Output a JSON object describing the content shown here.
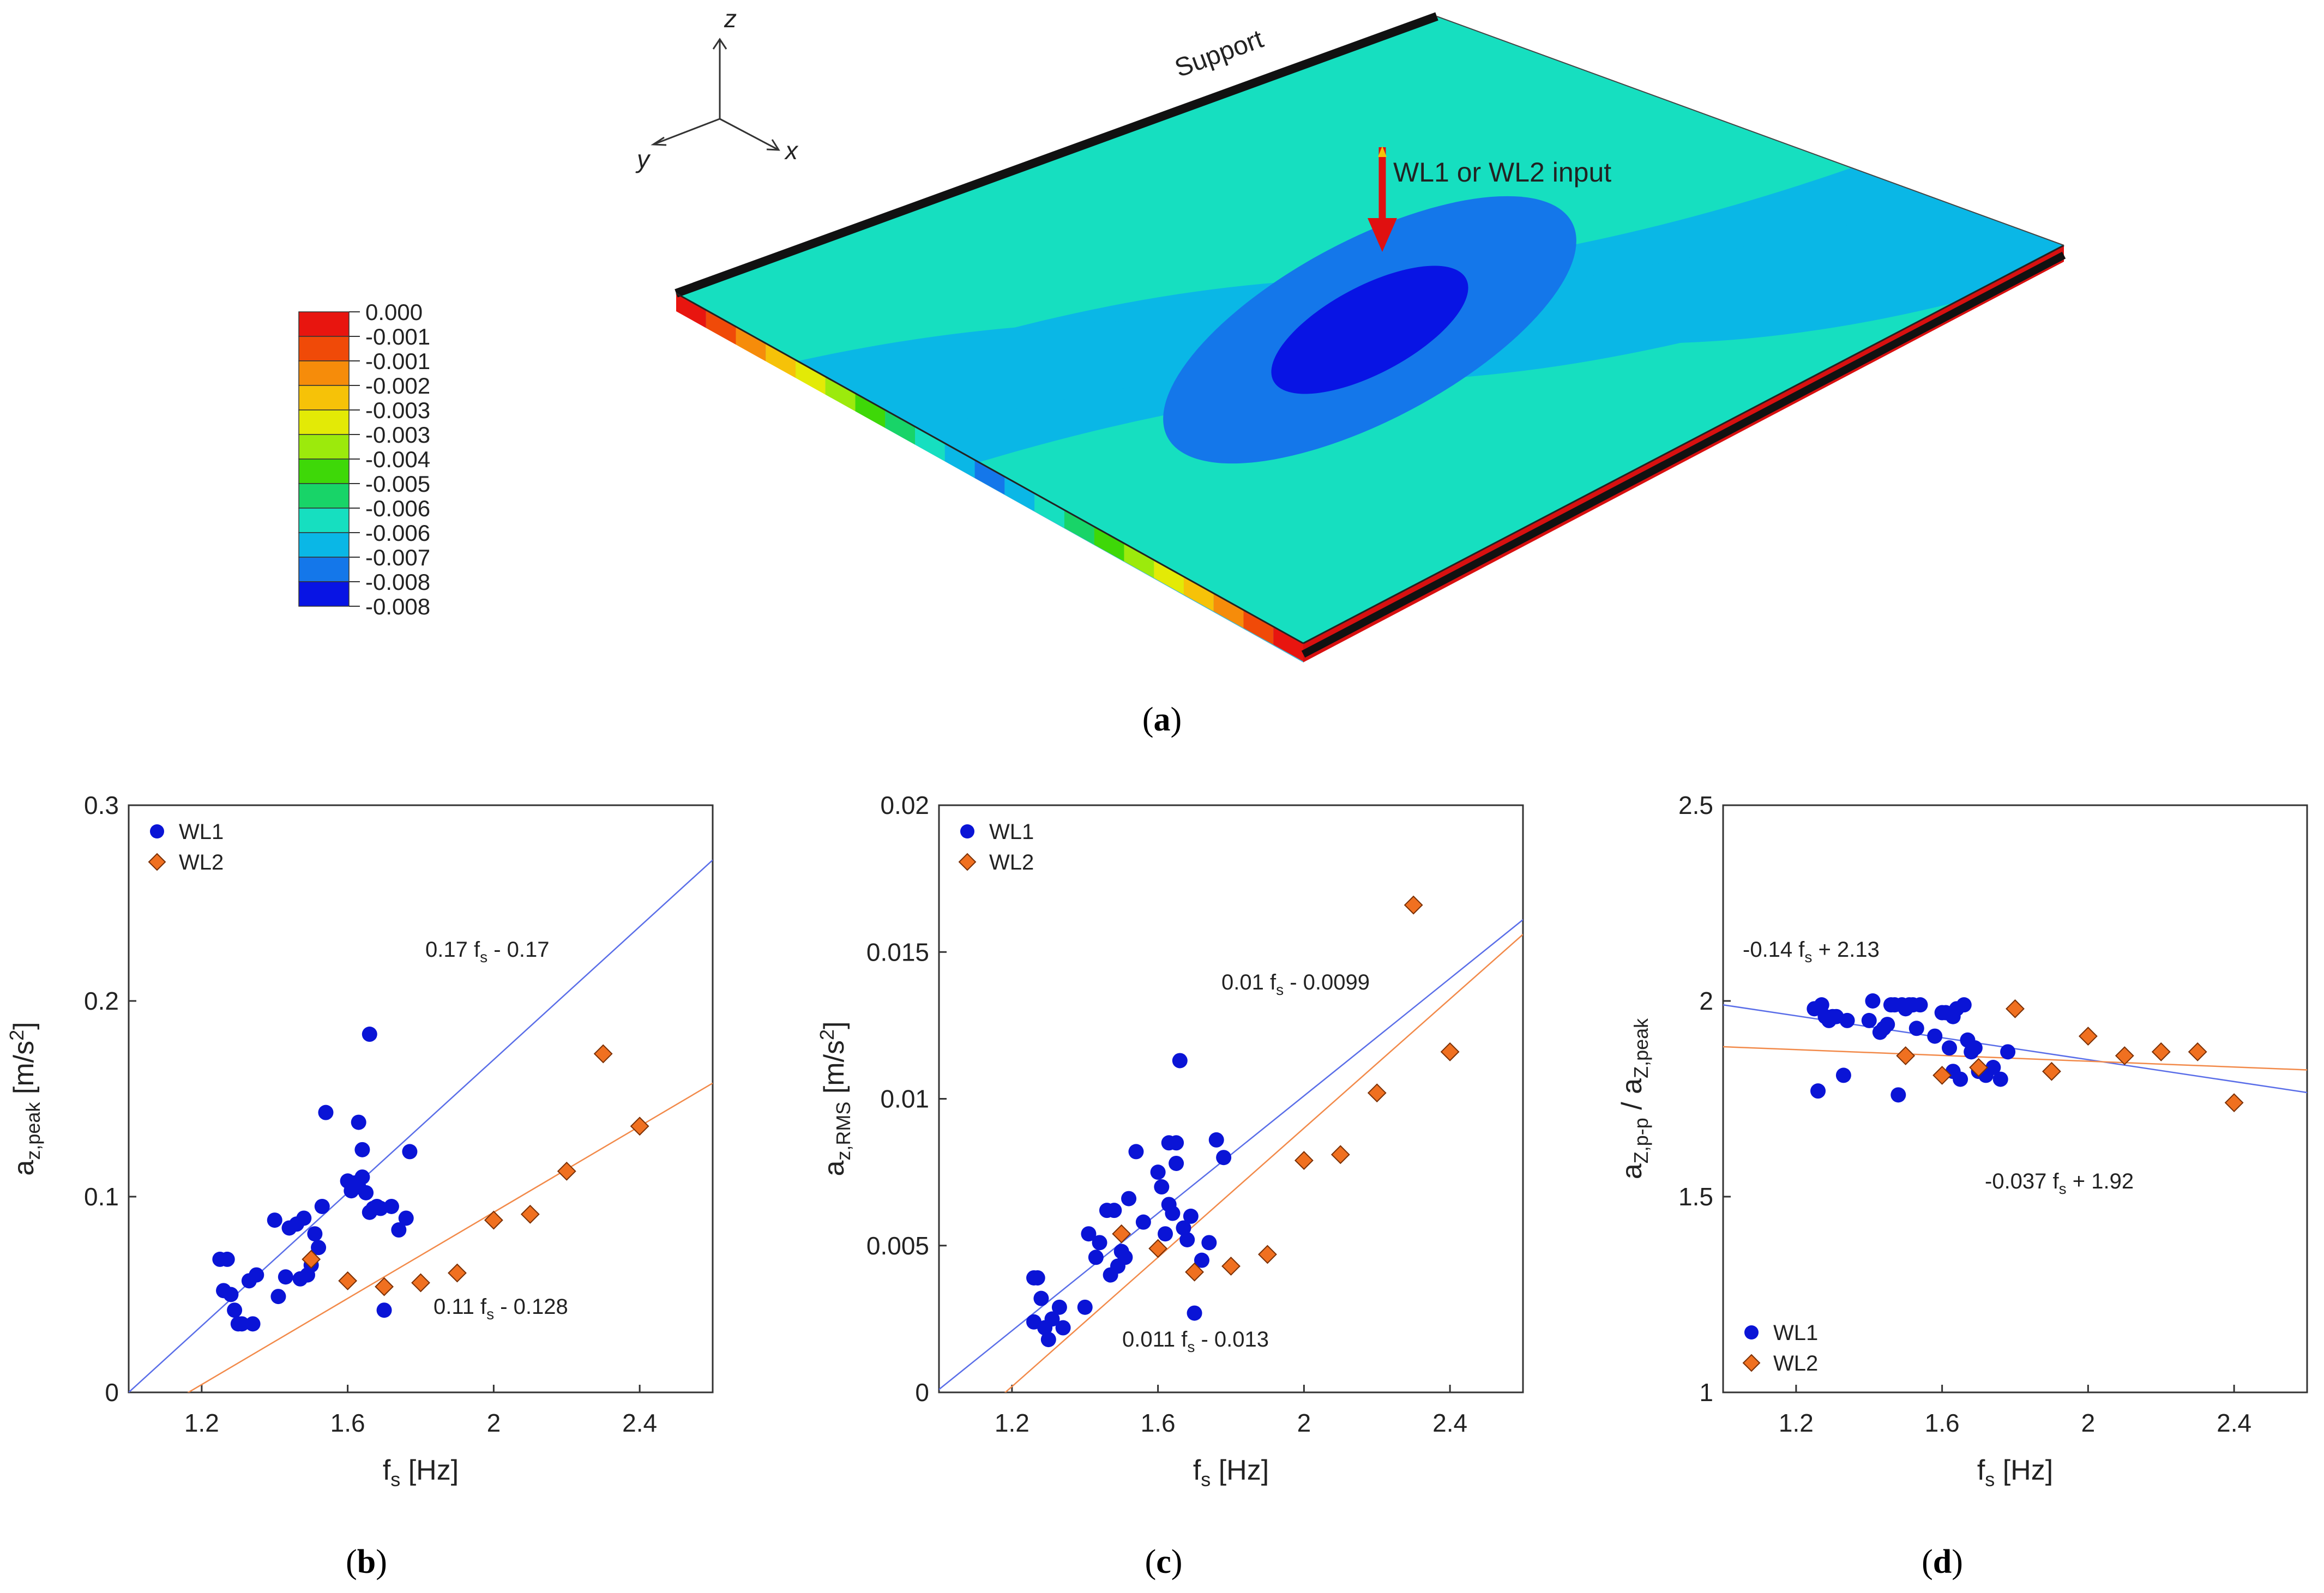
{
  "panel_a": {
    "caption_pre": "(",
    "caption_letter": "a",
    "caption_post": ")",
    "support_label": "Support",
    "input_label": "WL1 or WL2 input",
    "axes": {
      "z": "z",
      "y": "y",
      "x": "x"
    },
    "colorbar": {
      "labels": [
        "0.000",
        "-0.001",
        "-0.001",
        "-0.002",
        "-0.003",
        "-0.003",
        "-0.004",
        "-0.005",
        "-0.006",
        "-0.006",
        "-0.007",
        "-0.008",
        "-0.008"
      ],
      "colors": [
        "#e8150f",
        "#f04a08",
        "#f68c0a",
        "#f6c208",
        "#e3ea06",
        "#9cea0c",
        "#3ed808",
        "#18d468",
        "#16dfc0",
        "#0ab7e6",
        "#1477ea",
        "#0814e4"
      ]
    }
  },
  "chart_data": [
    {
      "id": "b",
      "type": "scatter",
      "caption_letter": "b",
      "xlabel_main": "f",
      "xlabel_sub": "s",
      "xlabel_rest": " [Hz]",
      "ylabel_main": "a",
      "ylabel_sub": "z,peak",
      "ylabel_rest": "  [m/s",
      "ylabel_sup": "2",
      "ylabel_end": "]",
      "xlim": [
        1.0,
        2.6
      ],
      "ylim": [
        0,
        0.3
      ],
      "xticks": [
        1.2,
        1.6,
        2.0,
        2.4
      ],
      "xtick_labels": [
        "1.2",
        "1.6",
        "2",
        "2.4"
      ],
      "yticks": [
        0,
        0.1,
        0.2,
        0.3
      ],
      "ytick_labels": [
        "0",
        "0.1",
        "0.2",
        "0.3"
      ],
      "legend": [
        "WL1",
        "WL2"
      ],
      "legend_position": "top-left",
      "series": [
        {
          "name": "WL1",
          "marker": "circle",
          "color": "#0a14d6",
          "x": [
            1.25,
            1.27,
            1.26,
            1.28,
            1.29,
            1.3,
            1.31,
            1.33,
            1.34,
            1.35,
            1.4,
            1.41,
            1.43,
            1.44,
            1.46,
            1.47,
            1.48,
            1.49,
            1.5,
            1.51,
            1.52,
            1.53,
            1.54,
            1.6,
            1.61,
            1.62,
            1.63,
            1.63,
            1.64,
            1.64,
            1.65,
            1.66,
            1.66,
            1.67,
            1.68,
            1.69,
            1.7,
            1.72,
            1.74,
            1.76,
            1.77
          ],
          "y": [
            0.068,
            0.068,
            0.052,
            0.05,
            0.042,
            0.035,
            0.035,
            0.057,
            0.035,
            0.06,
            0.088,
            0.049,
            0.059,
            0.084,
            0.086,
            0.058,
            0.089,
            0.06,
            0.065,
            0.081,
            0.074,
            0.095,
            0.143,
            0.108,
            0.103,
            0.107,
            0.105,
            0.138,
            0.11,
            0.124,
            0.102,
            0.183,
            0.092,
            0.094,
            0.095,
            0.094,
            0.042,
            0.095,
            0.083,
            0.089,
            0.123
          ]
        },
        {
          "name": "WL2",
          "marker": "diamond",
          "color": "#f07020",
          "x": [
            1.5,
            1.6,
            1.7,
            1.8,
            1.9,
            2.0,
            2.1,
            2.2,
            2.3,
            2.4
          ],
          "y": [
            0.068,
            0.057,
            0.054,
            0.056,
            0.061,
            0.088,
            0.091,
            0.113,
            0.173,
            0.136
          ]
        }
      ],
      "fits": [
        {
          "series": "WL1",
          "color": "#5a6ee8",
          "slope": 0.17,
          "intercept": -0.17,
          "label_a": "0.17 f",
          "label_sub": "s",
          "label_b": " - 0.17"
        },
        {
          "series": "WL2",
          "color": "#f28a4a",
          "slope": 0.11,
          "intercept": -0.128,
          "label_a": "0.11 f",
          "label_sub": "s",
          "label_b": " - 0.128"
        }
      ]
    },
    {
      "id": "c",
      "type": "scatter",
      "caption_letter": "c",
      "xlabel_main": "f",
      "xlabel_sub": "s",
      "xlabel_rest": " [Hz]",
      "ylabel_main": "a",
      "ylabel_sub": "z,RMS",
      "ylabel_rest": " [m/s",
      "ylabel_sup": "2",
      "ylabel_end": "]",
      "xlim": [
        1.0,
        2.6
      ],
      "ylim": [
        0,
        0.02
      ],
      "xticks": [
        1.2,
        1.6,
        2.0,
        2.4
      ],
      "xtick_labels": [
        "1.2",
        "1.6",
        "2",
        "2.4"
      ],
      "yticks": [
        0,
        0.005,
        0.01,
        0.015,
        0.02
      ],
      "ytick_labels": [
        "0",
        "0.005",
        "0.01",
        "0.015",
        "0.02"
      ],
      "legend": [
        "WL1",
        "WL2"
      ],
      "legend_position": "top-left",
      "series": [
        {
          "name": "WL1",
          "marker": "circle",
          "color": "#0a14d6",
          "x": [
            1.26,
            1.27,
            1.26,
            1.28,
            1.29,
            1.3,
            1.31,
            1.33,
            1.34,
            1.4,
            1.41,
            1.43,
            1.44,
            1.46,
            1.47,
            1.48,
            1.49,
            1.5,
            1.51,
            1.52,
            1.54,
            1.56,
            1.6,
            1.61,
            1.62,
            1.63,
            1.63,
            1.64,
            1.65,
            1.65,
            1.66,
            1.67,
            1.68,
            1.69,
            1.7,
            1.72,
            1.74,
            1.76,
            1.78
          ],
          "y": [
            0.0039,
            0.0039,
            0.0024,
            0.0032,
            0.0022,
            0.0018,
            0.0025,
            0.0029,
            0.0022,
            0.0029,
            0.0054,
            0.0046,
            0.0051,
            0.0062,
            0.004,
            0.0062,
            0.0043,
            0.0048,
            0.0046,
            0.0066,
            0.0082,
            0.0058,
            0.0075,
            0.007,
            0.0054,
            0.0085,
            0.0064,
            0.0061,
            0.0085,
            0.0078,
            0.0113,
            0.0056,
            0.0052,
            0.006,
            0.0027,
            0.0045,
            0.0051,
            0.0086,
            0.008
          ]
        },
        {
          "name": "WL2",
          "marker": "diamond",
          "color": "#f07020",
          "x": [
            1.5,
            1.6,
            1.7,
            1.8,
            1.9,
            2.0,
            2.1,
            2.2,
            2.3,
            2.4
          ],
          "y": [
            0.0054,
            0.0049,
            0.0041,
            0.0043,
            0.0047,
            0.0079,
            0.0081,
            0.0102,
            0.0166,
            0.0116
          ]
        }
      ],
      "fits": [
        {
          "series": "WL1",
          "color": "#5a6ee8",
          "slope": 0.01,
          "intercept": -0.0099,
          "label_a": "0.01 f",
          "label_sub": "s",
          "label_b": " - 0.0099"
        },
        {
          "series": "WL2",
          "color": "#f28a4a",
          "slope": 0.011,
          "intercept": -0.013,
          "label_a": "0.011 f",
          "label_sub": "s",
          "label_b": " - 0.013"
        }
      ]
    },
    {
      "id": "d",
      "type": "scatter",
      "caption_letter": "d",
      "xlabel_main": "f",
      "xlabel_sub": "s",
      "xlabel_rest": " [Hz]",
      "ylabel_main": "a",
      "ylabel_sub": "Z,p-p",
      "ylabel_rest": " / a",
      "ylabel_sub2": "Z,peak",
      "xlim": [
        1.0,
        2.6
      ],
      "ylim": [
        1,
        2.5
      ],
      "xticks": [
        1.2,
        1.6,
        2.0,
        2.4
      ],
      "xtick_labels": [
        "1.2",
        "1.6",
        "2",
        "2.4"
      ],
      "yticks": [
        1,
        1.5,
        2,
        2.5
      ],
      "ytick_labels": [
        "1",
        "1.5",
        "2",
        "2.5"
      ],
      "legend": [
        "WL1",
        "WL2"
      ],
      "legend_position": "bottom-left",
      "series": [
        {
          "name": "WL1",
          "marker": "circle",
          "color": "#0a14d6",
          "x": [
            1.25,
            1.27,
            1.26,
            1.28,
            1.29,
            1.3,
            1.31,
            1.33,
            1.34,
            1.4,
            1.41,
            1.43,
            1.44,
            1.45,
            1.46,
            1.47,
            1.48,
            1.49,
            1.5,
            1.51,
            1.52,
            1.53,
            1.54,
            1.58,
            1.6,
            1.61,
            1.62,
            1.63,
            1.63,
            1.64,
            1.65,
            1.66,
            1.67,
            1.68,
            1.69,
            1.7,
            1.72,
            1.74,
            1.76,
            1.78
          ],
          "y": [
            1.98,
            1.99,
            1.77,
            1.96,
            1.95,
            1.96,
            1.96,
            1.81,
            1.95,
            1.95,
            2.0,
            1.92,
            1.93,
            1.94,
            1.99,
            1.99,
            1.76,
            1.99,
            1.98,
            1.99,
            1.99,
            1.93,
            1.99,
            1.91,
            1.97,
            1.97,
            1.88,
            1.82,
            1.96,
            1.98,
            1.8,
            1.99,
            1.9,
            1.87,
            1.88,
            1.82,
            1.81,
            1.83,
            1.8,
            1.87
          ]
        },
        {
          "name": "WL2",
          "marker": "diamond",
          "color": "#f07020",
          "x": [
            1.5,
            1.6,
            1.7,
            1.8,
            1.9,
            2.0,
            2.1,
            2.2,
            2.3,
            2.4
          ],
          "y": [
            1.86,
            1.81,
            1.83,
            1.98,
            1.82,
            1.91,
            1.86,
            1.87,
            1.87,
            1.74
          ]
        }
      ],
      "fits": [
        {
          "series": "WL1",
          "color": "#5a6ee8",
          "slope": -0.14,
          "intercept": 2.13,
          "label_a": "-0.14 f",
          "label_sub": "s",
          "label_b": " + 2.13"
        },
        {
          "series": "WL2",
          "color": "#f28a4a",
          "slope": -0.037,
          "intercept": 1.92,
          "label_a": "-0.037 f",
          "label_sub": "s",
          "label_b": " + 1.92"
        }
      ]
    }
  ]
}
